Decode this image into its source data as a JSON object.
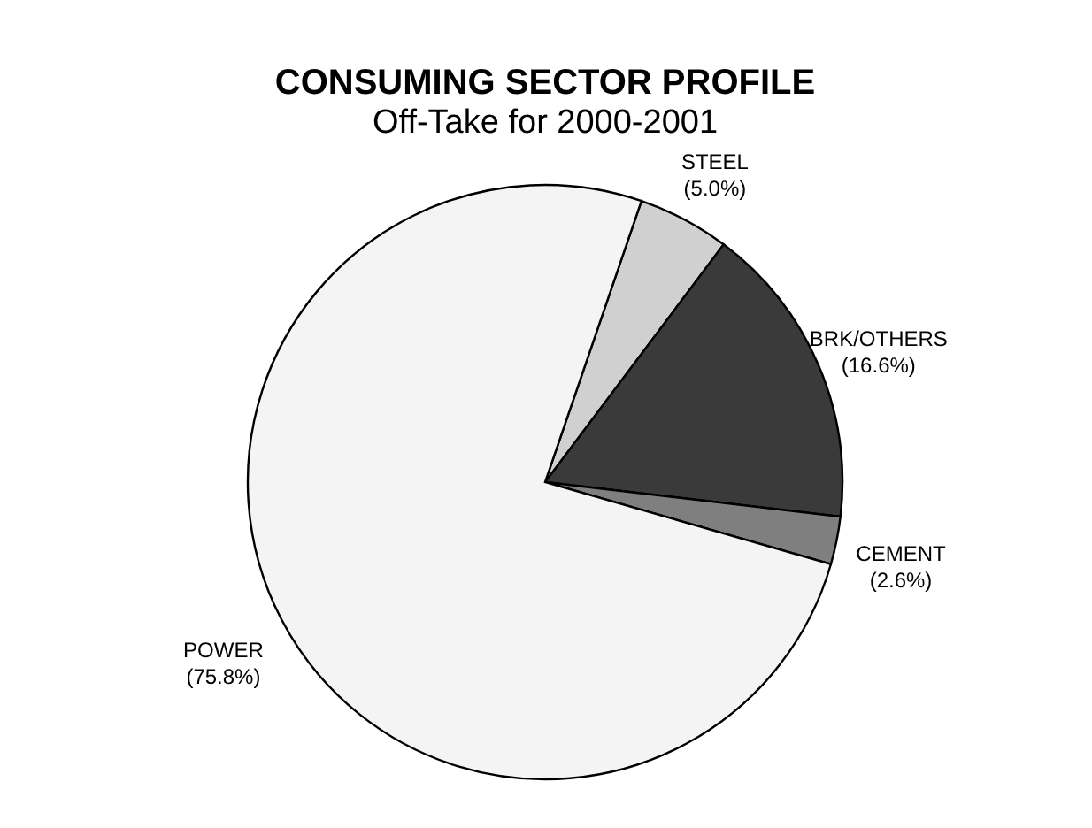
{
  "chart_data": {
    "type": "pie",
    "title": "CONSUMING SECTOR PROFILE",
    "subtitle": "Off-Take for 2000-2001",
    "categories": [
      "STEEL",
      "BRK/OTHERS",
      "CEMENT",
      "POWER"
    ],
    "values": [
      5.0,
      16.6,
      2.6,
      75.8
    ],
    "value_labels": [
      "(5.0%)",
      "(16.6%)",
      "(2.6%)",
      "(75.8%)"
    ],
    "colors": [
      "#d0d0d0",
      "#3a3a3a",
      "#7f7f7f",
      "#f4f4f4"
    ]
  }
}
